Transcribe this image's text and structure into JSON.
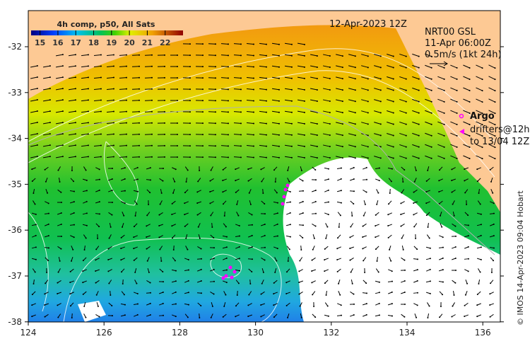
{
  "map": {
    "date_label": "12-Apr-2023 12Z",
    "colorbar": {
      "title": "4h comp, p50, All Sats",
      "ticks": [
        "15",
        "16",
        "17",
        "18",
        "19",
        "20",
        "21",
        "22"
      ],
      "range": [
        14.5,
        23
      ]
    },
    "current_info": {
      "model": "NRT00 GSL",
      "time": "11-Apr 06:00Z",
      "scale": "0.5m/s (1kt 24h)"
    },
    "legend": {
      "argo": "Argo",
      "drifters": "drifters@12h",
      "drifters_to": "to 13/04 12Z"
    },
    "credit": "© IMOS 14-Apr-2023 09:04 Hobart",
    "lat_ticks": [
      "-32",
      "-33",
      "-34",
      "-35",
      "-36",
      "-37",
      "-38"
    ],
    "lon_ticks": [
      "124",
      "126",
      "128",
      "130",
      "132",
      "134",
      "136"
    ],
    "colors": {
      "land": "#fdc994",
      "argo": "#ff00ff",
      "drifter": "#ff00ff",
      "cloud": "#ffffff"
    }
  }
}
